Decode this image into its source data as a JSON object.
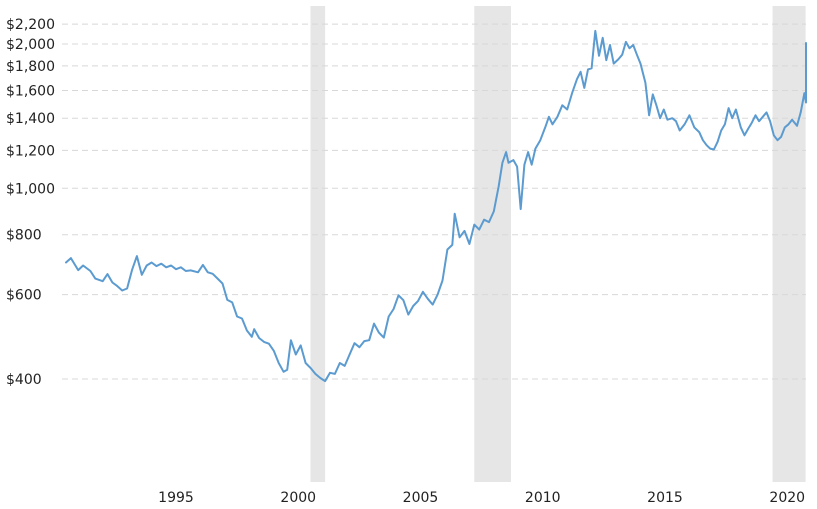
{
  "chart_data": {
    "type": "line",
    "title": "",
    "xlabel": "",
    "ylabel": "",
    "y_scale": "log",
    "xlim": [
      1990.5,
      2020.75
    ],
    "ylim": [
      270,
      2300
    ],
    "grid": "horizontal dashed",
    "legend": "none",
    "colors": {
      "line": "#5b9bd0",
      "recession_band": "#e6e6e6",
      "grid": "#d8d8d8",
      "text": "#222222"
    },
    "y_ticks": [
      {
        "value": 400,
        "label": "$400"
      },
      {
        "value": 600,
        "label": "$600"
      },
      {
        "value": 800,
        "label": "$800"
      },
      {
        "value": 1000,
        "label": "$1,000"
      },
      {
        "value": 1200,
        "label": "$1,200"
      },
      {
        "value": 1400,
        "label": "$1,400"
      },
      {
        "value": 1600,
        "label": "$1,600"
      },
      {
        "value": 1800,
        "label": "$1,800"
      },
      {
        "value": 2000,
        "label": "$2,000"
      },
      {
        "value": 2200,
        "label": "$2,200"
      }
    ],
    "x_ticks": [
      {
        "value": 1995,
        "label": "1995"
      },
      {
        "value": 2000,
        "label": "2000"
      },
      {
        "value": 2005,
        "label": "2005"
      },
      {
        "value": 2010,
        "label": "2010"
      },
      {
        "value": 2015,
        "label": "2015"
      },
      {
        "value": 2020,
        "label": "2020"
      }
    ],
    "recessions": [
      {
        "start": 2000.5,
        "end": 2001.1
      },
      {
        "start": 2007.2,
        "end": 2008.7
      },
      {
        "start": 2019.4,
        "end": 2020.75
      }
    ],
    "series": [
      {
        "points": [
          [
            1990.5,
            700
          ],
          [
            1990.7,
            715
          ],
          [
            1991.0,
            675
          ],
          [
            1991.2,
            690
          ],
          [
            1991.5,
            672
          ],
          [
            1991.7,
            648
          ],
          [
            1992.0,
            640
          ],
          [
            1992.2,
            662
          ],
          [
            1992.4,
            636
          ],
          [
            1992.6,
            625
          ],
          [
            1992.8,
            612
          ],
          [
            1993.0,
            618
          ],
          [
            1993.2,
            675
          ],
          [
            1993.4,
            722
          ],
          [
            1993.6,
            660
          ],
          [
            1993.8,
            690
          ],
          [
            1994.0,
            700
          ],
          [
            1994.2,
            688
          ],
          [
            1994.4,
            696
          ],
          [
            1994.6,
            684
          ],
          [
            1994.8,
            690
          ],
          [
            1995.0,
            678
          ],
          [
            1995.2,
            684
          ],
          [
            1995.4,
            672
          ],
          [
            1995.6,
            674
          ],
          [
            1995.9,
            668
          ],
          [
            1996.1,
            692
          ],
          [
            1996.3,
            668
          ],
          [
            1996.5,
            663
          ],
          [
            1996.7,
            648
          ],
          [
            1996.9,
            633
          ],
          [
            1997.1,
            585
          ],
          [
            1997.3,
            578
          ],
          [
            1997.5,
            540
          ],
          [
            1997.7,
            535
          ],
          [
            1997.9,
            505
          ],
          [
            1998.1,
            490
          ],
          [
            1998.2,
            508
          ],
          [
            1998.4,
            487
          ],
          [
            1998.6,
            478
          ],
          [
            1998.8,
            474
          ],
          [
            1999.0,
            458
          ],
          [
            1999.2,
            432
          ],
          [
            1999.4,
            414
          ],
          [
            1999.55,
            418
          ],
          [
            1999.7,
            482
          ],
          [
            1999.9,
            450
          ],
          [
            2000.1,
            470
          ],
          [
            2000.3,
            432
          ],
          [
            2000.5,
            422
          ],
          [
            2000.7,
            410
          ],
          [
            2000.9,
            402
          ],
          [
            2001.1,
            396
          ],
          [
            2001.3,
            412
          ],
          [
            2001.5,
            410
          ],
          [
            2001.7,
            432
          ],
          [
            2001.9,
            426
          ],
          [
            2002.1,
            450
          ],
          [
            2002.3,
            475
          ],
          [
            2002.5,
            466
          ],
          [
            2002.7,
            480
          ],
          [
            2002.9,
            482
          ],
          [
            2003.1,
            522
          ],
          [
            2003.3,
            500
          ],
          [
            2003.5,
            488
          ],
          [
            2003.7,
            540
          ],
          [
            2003.9,
            560
          ],
          [
            2004.1,
            598
          ],
          [
            2004.3,
            584
          ],
          [
            2004.5,
            545
          ],
          [
            2004.7,
            568
          ],
          [
            2004.9,
            582
          ],
          [
            2005.1,
            608
          ],
          [
            2005.3,
            588
          ],
          [
            2005.5,
            572
          ],
          [
            2005.7,
            600
          ],
          [
            2005.9,
            642
          ],
          [
            2006.1,
            745
          ],
          [
            2006.3,
            762
          ],
          [
            2006.4,
            885
          ],
          [
            2006.6,
            790
          ],
          [
            2006.8,
            815
          ],
          [
            2007.0,
            765
          ],
          [
            2007.2,
            840
          ],
          [
            2007.4,
            820
          ],
          [
            2007.6,
            860
          ],
          [
            2007.8,
            850
          ],
          [
            2008.0,
            895
          ],
          [
            2008.2,
            1010
          ],
          [
            2008.35,
            1130
          ],
          [
            2008.5,
            1190
          ],
          [
            2008.6,
            1130
          ],
          [
            2008.8,
            1145
          ],
          [
            2008.95,
            1110
          ],
          [
            2009.1,
            905
          ],
          [
            2009.25,
            1120
          ],
          [
            2009.4,
            1190
          ],
          [
            2009.55,
            1120
          ],
          [
            2009.7,
            1210
          ],
          [
            2009.9,
            1260
          ],
          [
            2010.1,
            1340
          ],
          [
            2010.25,
            1410
          ],
          [
            2010.4,
            1360
          ],
          [
            2010.6,
            1410
          ],
          [
            2010.8,
            1490
          ],
          [
            2011.0,
            1460
          ],
          [
            2011.2,
            1580
          ],
          [
            2011.4,
            1690
          ],
          [
            2011.55,
            1750
          ],
          [
            2011.7,
            1620
          ],
          [
            2011.85,
            1770
          ],
          [
            2012.0,
            1780
          ],
          [
            2012.15,
            2130
          ],
          [
            2012.3,
            1890
          ],
          [
            2012.45,
            2060
          ],
          [
            2012.6,
            1850
          ],
          [
            2012.75,
            1990
          ],
          [
            2012.9,
            1820
          ],
          [
            2013.1,
            1860
          ],
          [
            2013.25,
            1900
          ],
          [
            2013.4,
            2020
          ],
          [
            2013.55,
            1960
          ],
          [
            2013.7,
            1990
          ],
          [
            2013.85,
            1900
          ],
          [
            2014.0,
            1820
          ],
          [
            2014.2,
            1660
          ],
          [
            2014.35,
            1420
          ],
          [
            2014.5,
            1570
          ],
          [
            2014.65,
            1490
          ],
          [
            2014.8,
            1400
          ],
          [
            2014.95,
            1460
          ],
          [
            2015.1,
            1390
          ],
          [
            2015.3,
            1400
          ],
          [
            2015.45,
            1380
          ],
          [
            2015.6,
            1320
          ],
          [
            2015.8,
            1360
          ],
          [
            2016.0,
            1420
          ],
          [
            2016.2,
            1340
          ],
          [
            2016.4,
            1310
          ],
          [
            2016.55,
            1260
          ],
          [
            2016.7,
            1230
          ],
          [
            2016.85,
            1210
          ],
          [
            2017.0,
            1205
          ],
          [
            2017.15,
            1250
          ],
          [
            2017.3,
            1320
          ],
          [
            2017.45,
            1360
          ],
          [
            2017.6,
            1470
          ],
          [
            2017.75,
            1400
          ],
          [
            2017.9,
            1460
          ],
          [
            2018.1,
            1340
          ],
          [
            2018.25,
            1290
          ],
          [
            2018.4,
            1330
          ],
          [
            2018.55,
            1370
          ],
          [
            2018.7,
            1420
          ],
          [
            2018.85,
            1380
          ],
          [
            2019.0,
            1410
          ],
          [
            2019.15,
            1440
          ],
          [
            2019.3,
            1380
          ],
          [
            2019.45,
            1290
          ],
          [
            2019.6,
            1260
          ],
          [
            2019.75,
            1280
          ],
          [
            2019.9,
            1340
          ],
          [
            2020.05,
            1360
          ],
          [
            2020.2,
            1390
          ],
          [
            2020.4,
            1350
          ],
          [
            2020.55,
            1440
          ],
          [
            2020.7,
            1580
          ],
          [
            2020.85,
            1510
          ],
          [
            2021.0,
            1560
          ],
          [
            2021.1,
            1640
          ],
          [
            2021.25,
            1720
          ],
          [
            2021.4,
            1760
          ],
          [
            2021.5,
            1780
          ],
          [
            2021.6,
            1820
          ],
          [
            2021.75,
            2010
          ],
          [
            2021.9,
            1960
          ],
          [
            2022.0,
            1900
          ],
          [
            2022.1,
            1840
          ],
          [
            2022.2,
            1940
          ],
          [
            2022.3,
            1900
          ],
          [
            2022.45,
            1740
          ],
          [
            2022.55,
            1720
          ],
          [
            2022.7,
            1770
          ]
        ]
      }
    ]
  }
}
